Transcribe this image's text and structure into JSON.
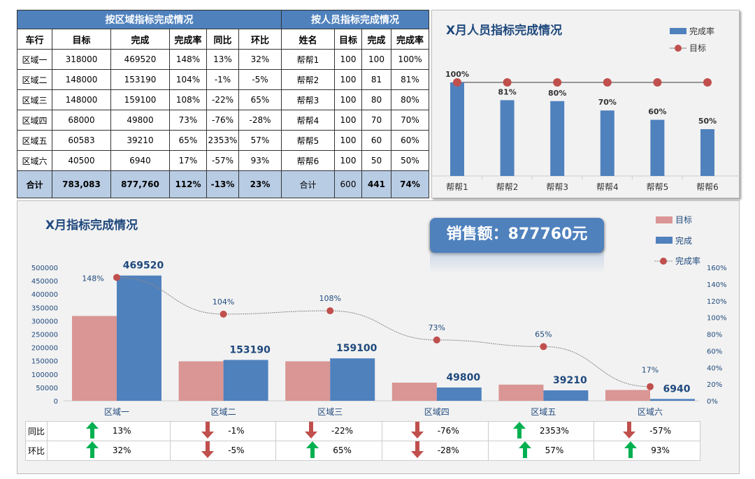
{
  "region_table": {
    "title": "按区域指标完成情况",
    "headers": [
      "车行",
      "目标",
      "完成",
      "完成率",
      "同比",
      "环比"
    ],
    "rows": [
      [
        "区域一",
        "318000",
        "469520",
        "148%",
        "13%",
        "32%"
      ],
      [
        "区域二",
        "148000",
        "153190",
        "104%",
        "-1%",
        "-5%"
      ],
      [
        "区域三",
        "148000",
        "159100",
        "108%",
        "-22%",
        "65%"
      ],
      [
        "区域四",
        "68000",
        "49800",
        "73%",
        "-76%",
        "-28%"
      ],
      [
        "区域五",
        "60583",
        "39210",
        "65%",
        "2353%",
        "57%"
      ],
      [
        "区域六",
        "40500",
        "6940",
        "17%",
        "-57%",
        "93%"
      ]
    ],
    "total": [
      "合计",
      "783,083",
      "877,760",
      "112%",
      "-13%",
      "23%"
    ]
  },
  "person_table": {
    "title": "按人员指标完成情况",
    "headers": [
      "姓名",
      "目标",
      "完成",
      "完成率"
    ],
    "rows": [
      [
        "帮帮1",
        "100",
        "100",
        "100%"
      ],
      [
        "帮帮2",
        "100",
        "81",
        "81%"
      ],
      [
        "帮帮3",
        "100",
        "80",
        "80%"
      ],
      [
        "帮帮4",
        "100",
        "70",
        "70%"
      ],
      [
        "帮帮5",
        "100",
        "60",
        "60%"
      ],
      [
        "帮帮6",
        "100",
        "50",
        "50%"
      ]
    ],
    "total": [
      "合计",
      "600",
      "441",
      "74%"
    ]
  },
  "sales_banner": "销售额：877760元",
  "chart_data": [
    {
      "type": "bar",
      "title": "X月人员指标完成情况",
      "categories": [
        "帮帮1",
        "帮帮2",
        "帮帮3",
        "帮帮4",
        "帮帮5",
        "帮帮6"
      ],
      "series": [
        {
          "name": "完成率",
          "values": [
            1.0,
            0.81,
            0.8,
            0.7,
            0.6,
            0.5
          ],
          "labels": [
            "100%",
            "81%",
            "80%",
            "70%",
            "60%",
            "50%"
          ],
          "color": "#4f81bd"
        },
        {
          "name": "目标",
          "values": [
            1,
            1,
            1,
            1,
            1,
            1
          ],
          "color": "#c0504d",
          "kind": "line"
        }
      ],
      "legend": "top-right"
    },
    {
      "type": "bar",
      "title": "X月指标完成情况",
      "categories": [
        "区域一",
        "区域二",
        "区域三",
        "区域四",
        "区域五",
        "区域六"
      ],
      "series": [
        {
          "name": "目标",
          "values": [
            318000,
            148000,
            148000,
            68000,
            60583,
            40500
          ],
          "color": "#d99694"
        },
        {
          "name": "完成",
          "values": [
            469520,
            153190,
            159100,
            49800,
            39210,
            6940
          ],
          "color": "#4f81bd"
        },
        {
          "name": "完成率",
          "values": [
            148,
            104,
            108,
            73,
            65,
            17
          ],
          "color": "#c0504d",
          "kind": "line",
          "axis": "right"
        }
      ],
      "ylim": [
        0,
        500000
      ],
      "yticks": [
        "0",
        "50000",
        "100000",
        "150000",
        "200000",
        "250000",
        "300000",
        "350000",
        "400000",
        "450000",
        "500000"
      ],
      "y2lim": [
        0,
        160
      ],
      "y2ticks": [
        "0%",
        "20%",
        "40%",
        "60%",
        "80%",
        "100%",
        "120%",
        "140%",
        "160%"
      ],
      "legend": "top-right"
    }
  ],
  "compare_table": {
    "rows": [
      {
        "label": "同比",
        "values": [
          "13%",
          "-1%",
          "-22%",
          "-76%",
          "2353%",
          "-57%"
        ],
        "up": [
          true,
          false,
          false,
          false,
          true,
          false
        ]
      },
      {
        "label": "环比",
        "values": [
          "32%",
          "-5%",
          "65%",
          "-28%",
          "57%",
          "93%"
        ],
        "up": [
          true,
          false,
          true,
          false,
          true,
          true
        ]
      }
    ]
  }
}
